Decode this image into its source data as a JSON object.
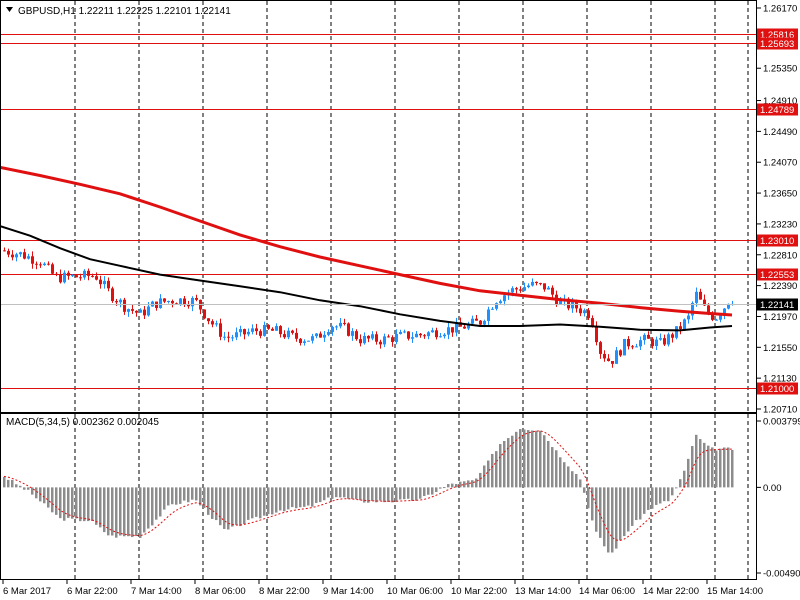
{
  "chart_data": [
    {
      "type": "candlestick",
      "header": "GBPUSD,H1  1.22211 1.22225 1.22101 1.22141",
      "symbol": "GBPUSD",
      "timeframe": "H1",
      "ohlc_last": {
        "open": 1.22211,
        "high": 1.22225,
        "low": 1.22101,
        "close": 1.22141
      },
      "current_price_label": "1.22141",
      "current_price": 1.22141,
      "ylim": [
        1.2071,
        1.2617
      ],
      "y_ticks": [
        "1.26170",
        "1.25350",
        "1.24910",
        "1.24490",
        "1.24070",
        "1.23650",
        "1.23230",
        "1.22810",
        "1.22390",
        "1.21970",
        "1.21550",
        "1.21130",
        "1.20710"
      ],
      "x_ticks": [
        "6 Mar 2017",
        "6 Mar 22:00",
        "7 Mar 14:00",
        "8 Mar 06:00",
        "8 Mar 22:00",
        "9 Mar 14:00",
        "10 Mar 06:00",
        "10 Mar 22:00",
        "13 Mar 14:00",
        "14 Mar 06:00",
        "14 Mar 22:00",
        "15 Mar 14:00"
      ],
      "horizontal_levels": [
        {
          "value": 1.25816,
          "label": "1.25816"
        },
        {
          "value": 1.25693,
          "label": "1.25693"
        },
        {
          "value": 1.24789,
          "label": "1.24789"
        },
        {
          "value": 1.2301,
          "label": "1.23010"
        },
        {
          "value": 1.22553,
          "label": "1.22553"
        },
        {
          "value": 1.21,
          "label": "1.21000"
        }
      ],
      "moving_averages": [
        {
          "color": "#e01010",
          "points": [
            [
              0,
              1.24
            ],
            [
              40,
              1.2389
            ],
            [
              80,
              1.2377
            ],
            [
              120,
              1.2364
            ],
            [
              160,
              1.2346
            ],
            [
              200,
              1.2327
            ],
            [
              240,
              1.2308
            ],
            [
              280,
              1.2292
            ],
            [
              320,
              1.2278
            ],
            [
              360,
              1.2266
            ],
            [
              400,
              1.2254
            ],
            [
              440,
              1.2242
            ],
            [
              480,
              1.2232
            ],
            [
              520,
              1.2226
            ],
            [
              560,
              1.222
            ],
            [
              600,
              1.2215
            ],
            [
              640,
              1.2209
            ],
            [
              680,
              1.2204
            ],
            [
              710,
              1.2201
            ],
            [
              732,
              1.2199
            ]
          ]
        },
        {
          "color": "#000000",
          "points": [
            [
              0,
              1.232
            ],
            [
              30,
              1.2307
            ],
            [
              60,
              1.229
            ],
            [
              90,
              1.2275
            ],
            [
              120,
              1.2266
            ],
            [
              160,
              1.2254
            ],
            [
              200,
              1.2246
            ],
            [
              240,
              1.2238
            ],
            [
              280,
              1.223
            ],
            [
              320,
              1.2219
            ],
            [
              360,
              1.2211
            ],
            [
              400,
              1.22
            ],
            [
              440,
              1.2191
            ],
            [
              480,
              1.2184
            ],
            [
              520,
              1.2184
            ],
            [
              560,
              1.2186
            ],
            [
              600,
              1.2183
            ],
            [
              640,
              1.2179
            ],
            [
              680,
              1.2178
            ],
            [
              710,
              1.2182
            ],
            [
              732,
              1.2184
            ]
          ]
        }
      ],
      "candles_bull_color": "#1e90ff",
      "candles_bear_color": "#e01010",
      "price_path": [
        [
          2,
          1.2287
        ],
        [
          20,
          1.2282
        ],
        [
          40,
          1.2272
        ],
        [
          55,
          1.225
        ],
        [
          75,
          1.2251
        ],
        [
          95,
          1.2253
        ],
        [
          110,
          1.2228
        ],
        [
          125,
          1.221
        ],
        [
          140,
          1.22
        ],
        [
          155,
          1.2215
        ],
        [
          175,
          1.222
        ],
        [
          195,
          1.2218
        ],
        [
          210,
          1.219
        ],
        [
          225,
          1.2168
        ],
        [
          240,
          1.2172
        ],
        [
          255,
          1.2178
        ],
        [
          275,
          1.2177
        ],
        [
          295,
          1.2168
        ],
        [
          315,
          1.2166
        ],
        [
          330,
          1.2186
        ],
        [
          345,
          1.218
        ],
        [
          360,
          1.2166
        ],
        [
          380,
          1.2165
        ],
        [
          400,
          1.217
        ],
        [
          420,
          1.2172
        ],
        [
          440,
          1.2178
        ],
        [
          460,
          1.2182
        ],
        [
          480,
          1.219
        ],
        [
          495,
          1.222
        ],
        [
          510,
          1.2232
        ],
        [
          530,
          1.224
        ],
        [
          545,
          1.2237
        ],
        [
          560,
          1.2215
        ],
        [
          575,
          1.221
        ],
        [
          590,
          1.22
        ],
        [
          600,
          1.215
        ],
        [
          610,
          1.2135
        ],
        [
          625,
          1.216
        ],
        [
          645,
          1.2165
        ],
        [
          660,
          1.216
        ],
        [
          675,
          1.2175
        ],
        [
          688,
          1.2195
        ],
        [
          695,
          1.2229
        ],
        [
          705,
          1.2205
        ],
        [
          715,
          1.2195
        ],
        [
          725,
          1.2212
        ],
        [
          732,
          1.2214
        ]
      ]
    },
    {
      "type": "bar",
      "title": "MACD(5,34,5) 0.002362 0.002045",
      "ylim": [
        -0.004901,
        0.003799
      ],
      "y_ticks": [
        "0.003799",
        "0.00",
        "-0.004901"
      ],
      "bar_color": "#8c8c8c",
      "signal_color": "#e01010",
      "histogram_path": [
        [
          2,
          0.0007
        ],
        [
          30,
          -0.0003
        ],
        [
          60,
          -0.0018
        ],
        [
          90,
          -0.0019
        ],
        [
          110,
          -0.0028
        ],
        [
          140,
          -0.0028
        ],
        [
          170,
          -0.001
        ],
        [
          195,
          -0.0007
        ],
        [
          225,
          -0.0025
        ],
        [
          250,
          -0.0019
        ],
        [
          280,
          -0.0013
        ],
        [
          310,
          -0.0011
        ],
        [
          335,
          -0.0005
        ],
        [
          360,
          -0.0008
        ],
        [
          390,
          -0.0008
        ],
        [
          420,
          -0.0007
        ],
        [
          450,
          0.0002
        ],
        [
          475,
          0.0004
        ],
        [
          500,
          0.0025
        ],
        [
          520,
          0.0034
        ],
        [
          540,
          0.0033
        ],
        [
          560,
          0.0018
        ],
        [
          580,
          0.0005
        ],
        [
          595,
          -0.0025
        ],
        [
          610,
          -0.0039
        ],
        [
          630,
          -0.0023
        ],
        [
          650,
          -0.0012
        ],
        [
          670,
          -0.0007
        ],
        [
          685,
          0.001
        ],
        [
          695,
          0.003
        ],
        [
          710,
          0.0022
        ],
        [
          732,
          0.0022
        ]
      ]
    }
  ]
}
